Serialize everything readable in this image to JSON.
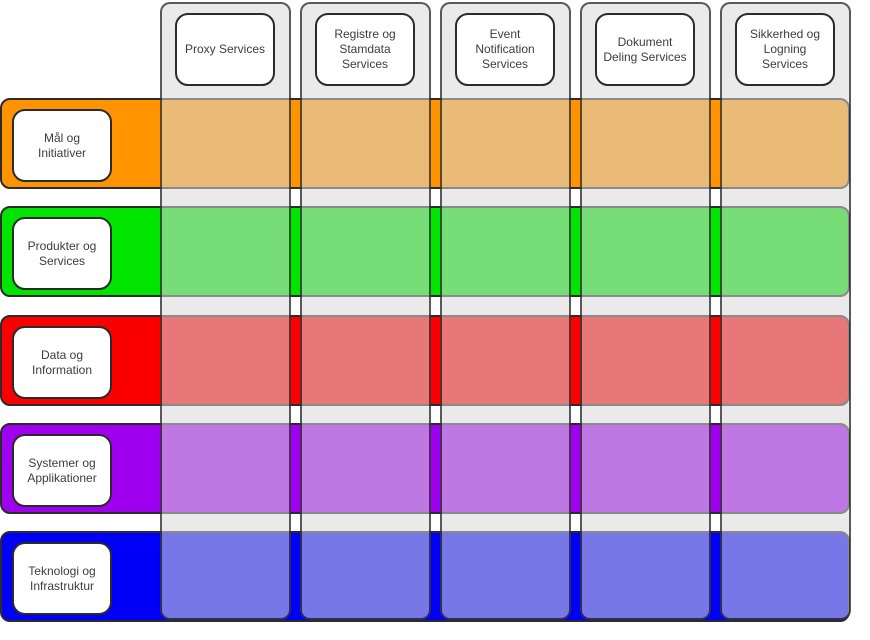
{
  "diagram": {
    "rows": [
      {
        "label": "Mål og Initiativer",
        "color": "#FF9400"
      },
      {
        "label": "Produkter og Services",
        "color": "#00E400"
      },
      {
        "label": "Data og Information",
        "color": "#FA0000"
      },
      {
        "label": "Systemer og Applikationer",
        "color": "#A000F0"
      },
      {
        "label": "Teknologi og Infrastruktur",
        "color": "#0000F8"
      }
    ],
    "columns": [
      {
        "label": "Proxy Services"
      },
      {
        "label": "Registre og Stamdata Services"
      },
      {
        "label": "Event Notification Services"
      },
      {
        "label": "Dokument Deling Services"
      },
      {
        "label": "Sikkerhed og Logning Services"
      }
    ],
    "lane_fill": "rgba(216,216,216,0.55)",
    "band_border_color": "#2b2b2b",
    "label_box_background": "#ffffff",
    "label_text_color": "#3d3d3d"
  }
}
